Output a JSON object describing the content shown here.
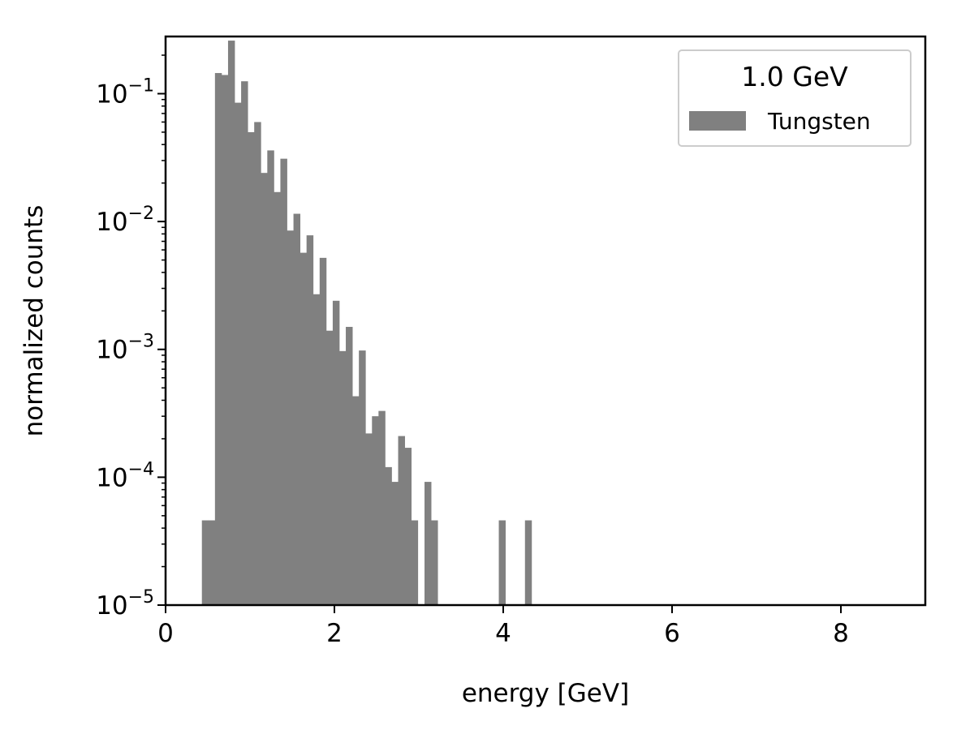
{
  "chart_data": {
    "type": "bar",
    "subtype": "histogram",
    "title": "",
    "xlabel": "energy [GeV]",
    "ylabel": "normalized counts",
    "xlim": [
      0,
      9
    ],
    "ylim": [
      1e-05,
      0.28
    ],
    "yscale": "log",
    "grid": false,
    "legend": {
      "title": "1.0 GeV",
      "placement": "top-right",
      "entries": [
        {
          "label": "Tungsten",
          "color": "#808080"
        }
      ]
    },
    "x_ticks": [
      {
        "value": 0,
        "label": "0"
      },
      {
        "value": 2,
        "label": "2"
      },
      {
        "value": 4,
        "label": "4"
      },
      {
        "value": 6,
        "label": "6"
      },
      {
        "value": 8,
        "label": "8"
      }
    ],
    "y_ticks": [
      {
        "value": 1e-05,
        "base": "10",
        "exp": "−5"
      },
      {
        "value": 0.0001,
        "base": "10",
        "exp": "−4"
      },
      {
        "value": 0.001,
        "base": "10",
        "exp": "−3"
      },
      {
        "value": 0.01,
        "base": "10",
        "exp": "−2"
      },
      {
        "value": 0.1,
        "base": "10",
        "exp": "−1"
      }
    ],
    "series": [
      {
        "name": "Tungsten",
        "color": "#808080",
        "bin_width": 0.0775,
        "bins": [
          {
            "x": 0.43,
            "y": 4.6e-05
          },
          {
            "x": 0.5075,
            "y": 4.6e-05
          },
          {
            "x": 0.585,
            "y": 0.145
          },
          {
            "x": 0.6625,
            "y": 0.14
          },
          {
            "x": 0.74,
            "y": 0.26
          },
          {
            "x": 0.8175,
            "y": 0.085
          },
          {
            "x": 0.895,
            "y": 0.125
          },
          {
            "x": 0.9725,
            "y": 0.05
          },
          {
            "x": 1.05,
            "y": 0.06
          },
          {
            "x": 1.1275,
            "y": 0.024
          },
          {
            "x": 1.205,
            "y": 0.036
          },
          {
            "x": 1.2825,
            "y": 0.017
          },
          {
            "x": 1.36,
            "y": 0.031
          },
          {
            "x": 1.4375,
            "y": 0.0085
          },
          {
            "x": 1.515,
            "y": 0.0115
          },
          {
            "x": 1.5925,
            "y": 0.0057
          },
          {
            "x": 1.67,
            "y": 0.0078
          },
          {
            "x": 1.7475,
            "y": 0.0027
          },
          {
            "x": 1.825,
            "y": 0.0052
          },
          {
            "x": 1.9025,
            "y": 0.0014
          },
          {
            "x": 1.98,
            "y": 0.0024
          },
          {
            "x": 2.0575,
            "y": 0.00097
          },
          {
            "x": 2.135,
            "y": 0.0015
          },
          {
            "x": 2.2125,
            "y": 0.00043
          },
          {
            "x": 2.29,
            "y": 0.00098
          },
          {
            "x": 2.3675,
            "y": 0.00022
          },
          {
            "x": 2.445,
            "y": 0.0003
          },
          {
            "x": 2.5225,
            "y": 0.00033
          },
          {
            "x": 2.6,
            "y": 0.00012
          },
          {
            "x": 2.6775,
            "y": 9.2e-05
          },
          {
            "x": 2.755,
            "y": 0.00021
          },
          {
            "x": 2.8325,
            "y": 0.00017
          },
          {
            "x": 2.91,
            "y": 4.6e-05
          },
          {
            "x": 3.0675,
            "y": 9.2e-05
          },
          {
            "x": 3.145,
            "y": 4.6e-05
          },
          {
            "x": 3.9475,
            "y": 4.6e-05
          },
          {
            "x": 4.2575,
            "y": 4.6e-05
          }
        ]
      }
    ]
  }
}
